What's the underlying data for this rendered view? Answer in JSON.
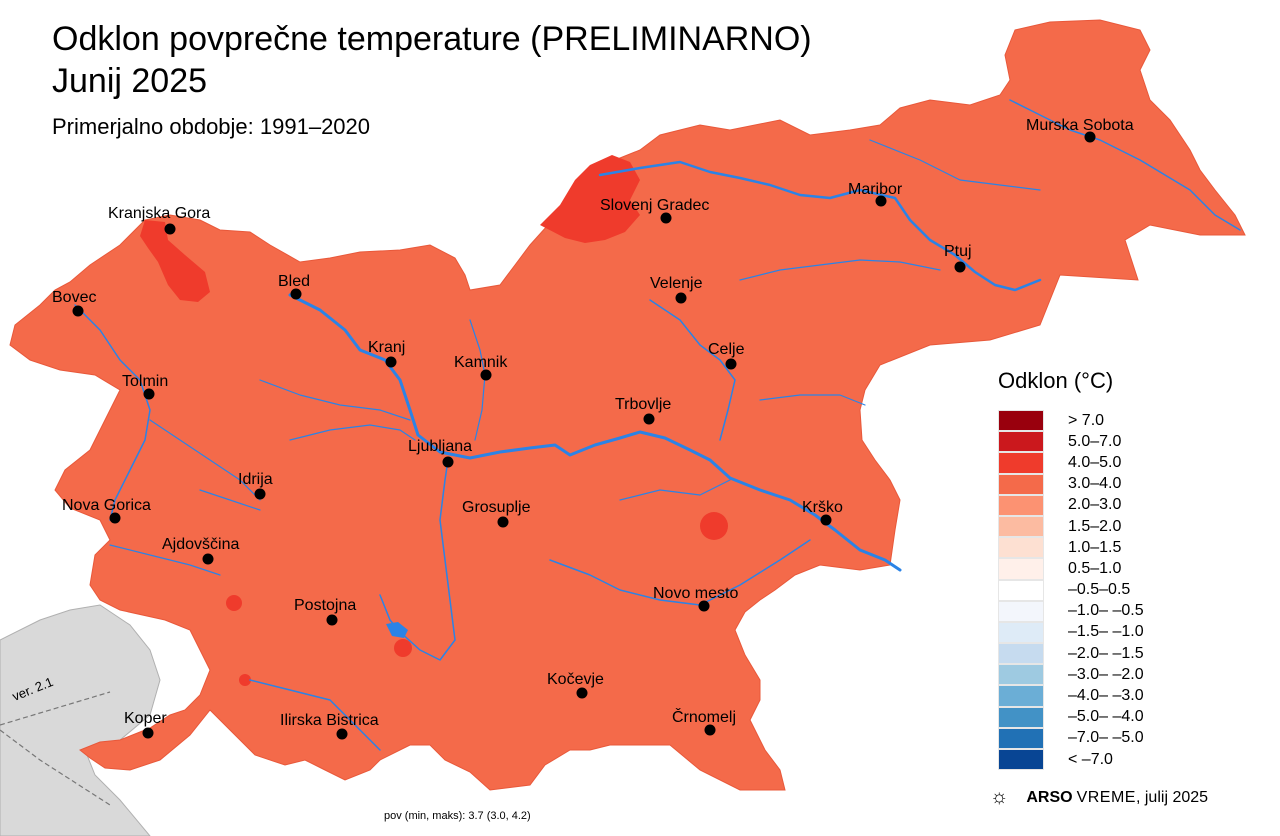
{
  "title_line1": "Odklon povprečne temperature (PRELIMINARNO)",
  "title_line2": "Junij 2025",
  "subtitle": "Primerjalno obdobje: 1991–2020",
  "legend": {
    "title": "Odklon (°C)",
    "classes": [
      {
        "label": "> 7.0",
        "color": "#99000d"
      },
      {
        "label": "5.0–7.0",
        "color": "#cb181d"
      },
      {
        "label": "4.0–5.0",
        "color": "#ef3b2c"
      },
      {
        "label": "3.0–4.0",
        "color": "#f46a4a"
      },
      {
        "label": "2.0–3.0",
        "color": "#fc9272"
      },
      {
        "label": "1.5–2.0",
        "color": "#fcbba1"
      },
      {
        "label": "1.0–1.5",
        "color": "#fde0d2"
      },
      {
        "label": "0.5–1.0",
        "color": "#fff0ea"
      },
      {
        "label": "–0.5–0.5",
        "color": "#ffffff"
      },
      {
        "label": "–1.0– –0.5",
        "color": "#f3f6fc"
      },
      {
        "label": "–1.5– –1.0",
        "color": "#deebf7"
      },
      {
        "label": "–2.0– –1.5",
        "color": "#c6dbef"
      },
      {
        "label": "–3.0– –2.0",
        "color": "#9ecae1"
      },
      {
        "label": "–4.0– –3.0",
        "color": "#6baed6"
      },
      {
        "label": "–5.0– –4.0",
        "color": "#4292c6"
      },
      {
        "label": "–7.0– –5.0",
        "color": "#2171b5"
      },
      {
        "label": "< –7.0",
        "color": "#084594"
      }
    ]
  },
  "cities": [
    {
      "name": "Murska Sobota"
    },
    {
      "name": "Maribor"
    },
    {
      "name": "Slovenj Gradec"
    },
    {
      "name": "Kranjska Gora"
    },
    {
      "name": "Ptuj"
    },
    {
      "name": "Velenje"
    },
    {
      "name": "Bled"
    },
    {
      "name": "Bovec"
    },
    {
      "name": "Kranj"
    },
    {
      "name": "Celje"
    },
    {
      "name": "Kamnik"
    },
    {
      "name": "Tolmin"
    },
    {
      "name": "Trbovlje"
    },
    {
      "name": "Ljubljana"
    },
    {
      "name": "Idrija"
    },
    {
      "name": "Nova Gorica"
    },
    {
      "name": "Grosuplje"
    },
    {
      "name": "Krško"
    },
    {
      "name": "Ajdovščina"
    },
    {
      "name": "Novo mesto"
    },
    {
      "name": "Postojna"
    },
    {
      "name": "Kočevje"
    },
    {
      "name": "Koper"
    },
    {
      "name": "Ilirska Bistrica"
    },
    {
      "name": "Črnomelj"
    }
  ],
  "colors": {
    "base_anomaly": "#f46a4a",
    "hot_anomaly": "#ef3b2c",
    "river": "#2b83e6",
    "outside": "#d9d9d9"
  },
  "credit": {
    "icon": "sun-icon",
    "brand_bold": "ARSO",
    "brand_rest": "VREME",
    "date": ", julij 2025"
  },
  "footnote": "pov (min, maks): 3.7 (3.0, 4.2)",
  "version": "ver. 2.1"
}
